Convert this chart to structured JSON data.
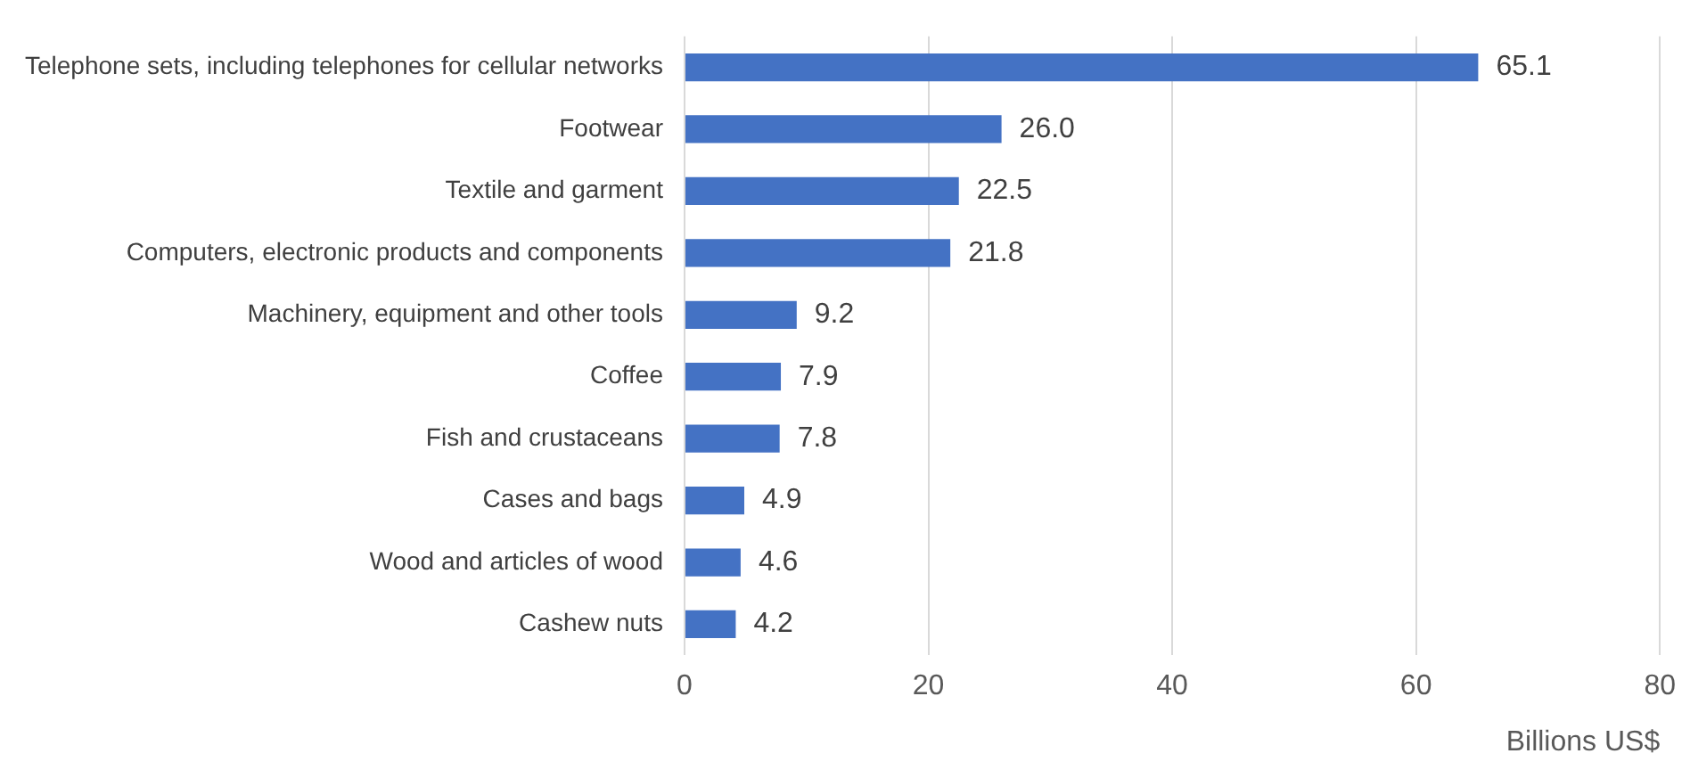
{
  "chart_data": {
    "type": "bar",
    "orientation": "horizontal",
    "xlabel": "Billions US$",
    "categories": [
      "Telephone sets, including telephones for cellular networks",
      "Footwear",
      "Textile and garment",
      "Computers, electronic products and components",
      "Machinery, equipment and other tools",
      "Coffee",
      "Fish and crustaceans",
      "Cases and bags",
      "Wood and articles of wood",
      "Cashew nuts"
    ],
    "values": [
      65.1,
      26.0,
      22.5,
      21.8,
      9.2,
      7.9,
      7.8,
      4.9,
      4.6,
      4.2
    ],
    "value_labels": [
      "65.1",
      "26.0",
      "22.5",
      "21.8",
      "9.2",
      "7.9",
      "7.8",
      "4.9",
      "4.6",
      "4.2"
    ],
    "color": "#4472c4",
    "xlim": [
      0,
      80
    ],
    "xticks": [
      0,
      20,
      40,
      60,
      80
    ],
    "grid": "x",
    "legend": false
  }
}
